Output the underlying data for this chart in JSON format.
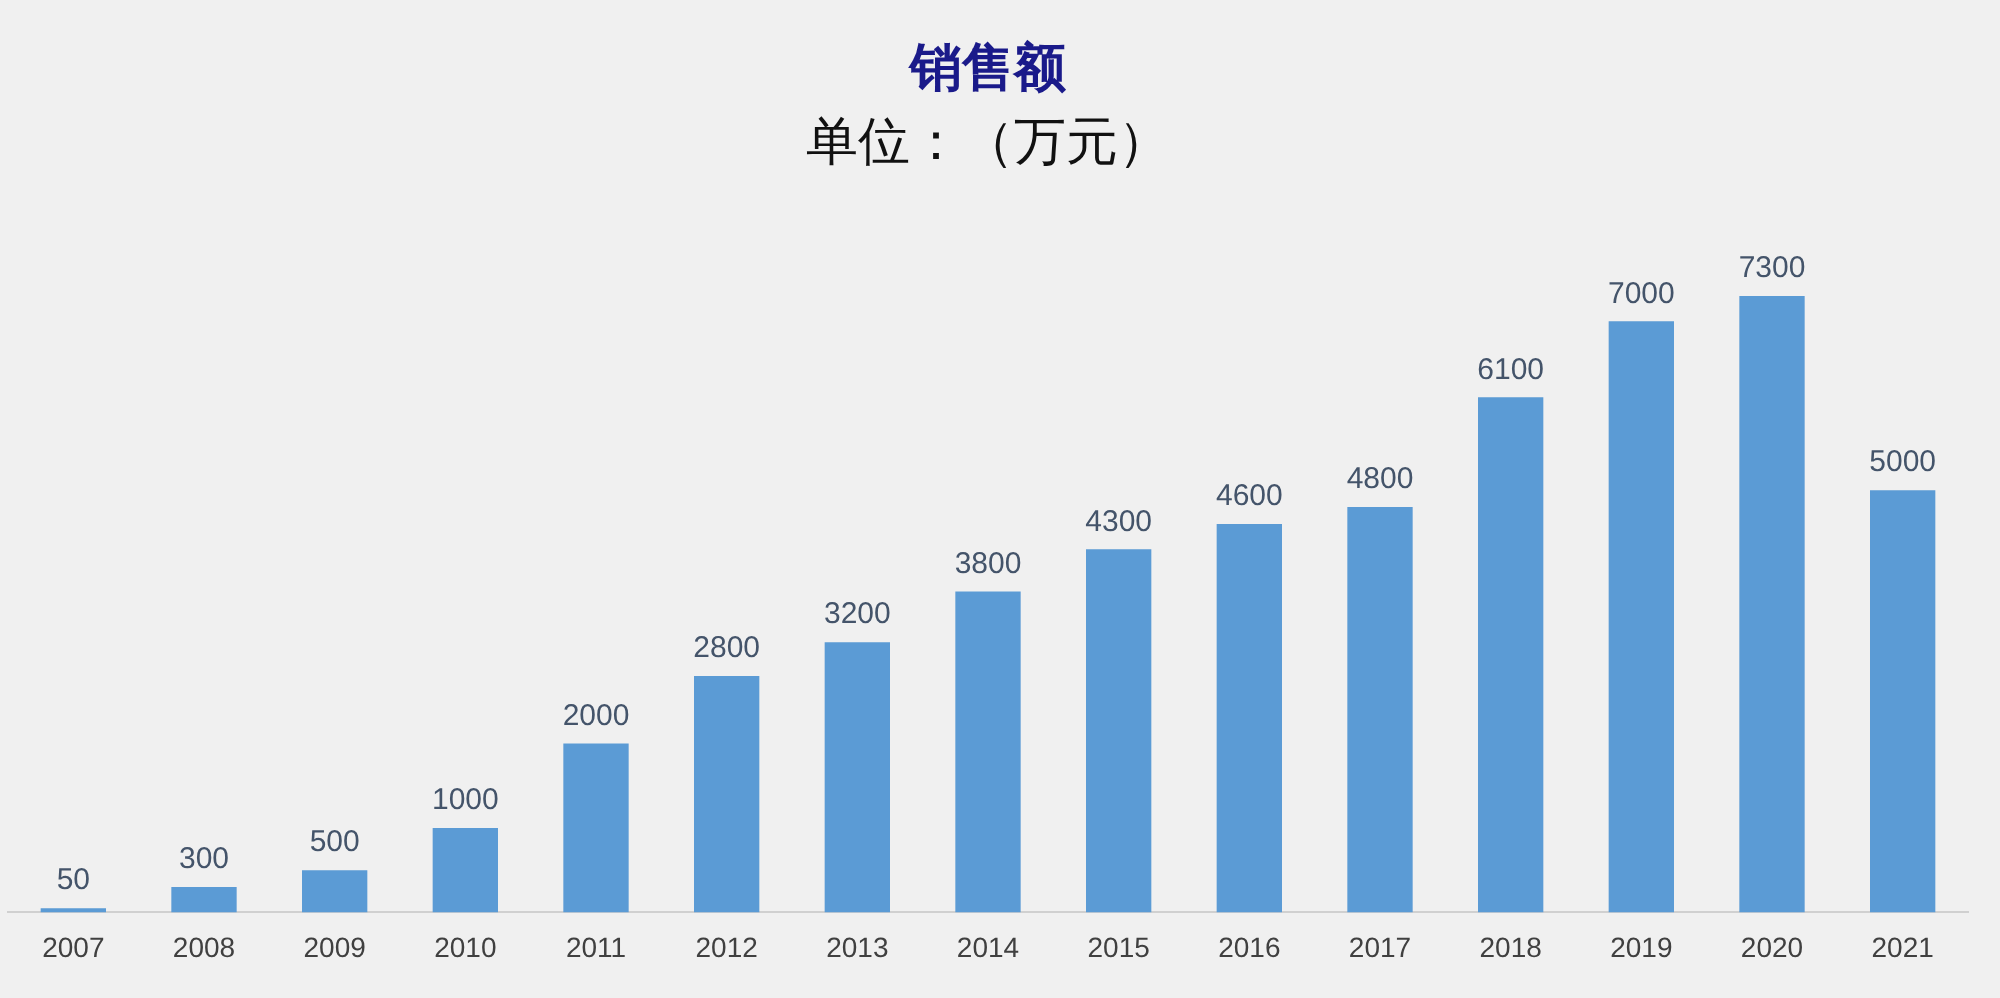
{
  "chart_data": {
    "type": "bar",
    "title": "销售额",
    "subtitle": "单位：（万元）",
    "categories": [
      "2007",
      "2008",
      "2009",
      "2010",
      "2011",
      "2012",
      "2013",
      "2014",
      "2015",
      "2016",
      "2017",
      "2018",
      "2019",
      "2020",
      "2021"
    ],
    "values": [
      50,
      300,
      500,
      1000,
      2000,
      2800,
      3200,
      3800,
      4300,
      4600,
      4800,
      6100,
      7000,
      7300,
      5000
    ],
    "color": "#5b9bd5",
    "data_labels": true,
    "grid": false,
    "legend": false
  }
}
